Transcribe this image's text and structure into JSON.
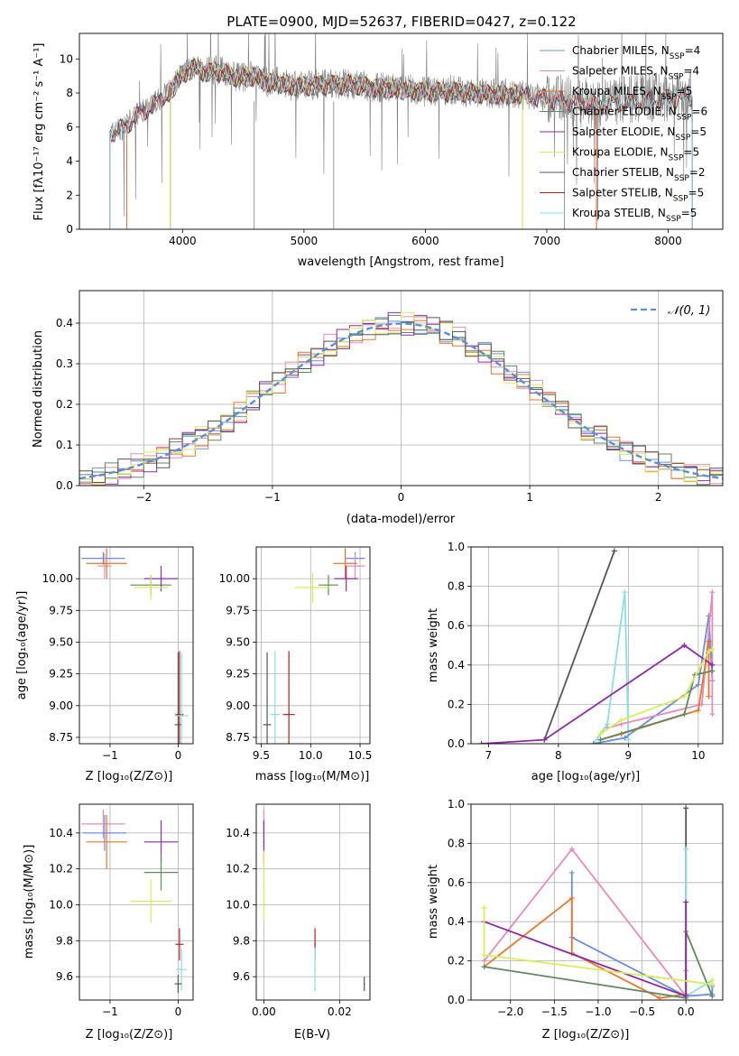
{
  "chart_data": [
    {
      "type": "line",
      "id": "spectrum",
      "title": "PLATE=0900, MJD=52637, FIBERID=0427, z=0.122",
      "xlabel": "wavelength [Angstrom, rest frame]",
      "ylabel": "Flux [fλ10⁻¹⁷ erg cm⁻² s⁻¹ A⁻¹]",
      "xlim": [
        3150,
        8450
      ],
      "ylim": [
        0,
        11.5
      ],
      "xticks": [
        4000,
        5000,
        6000,
        7000,
        8000
      ],
      "yticks": [
        0,
        2,
        4,
        6,
        8,
        10
      ],
      "grid": false,
      "legend_placement": "top-right",
      "data_series": {
        "name": "",
        "color": "#808080",
        "x": [
          3400,
          3500,
          3600,
          3700,
          3800,
          3900,
          4000,
          4100,
          4200,
          4300,
          4400,
          4500,
          4600,
          4700,
          4800,
          4900,
          5000,
          5200,
          5400,
          5600,
          5800,
          6000,
          6200,
          6400,
          6600,
          6800,
          7000,
          7200,
          7400,
          7600,
          7800,
          8000,
          8200
        ],
        "y": [
          5.6,
          5.9,
          6.6,
          7.1,
          7.6,
          8.2,
          9.2,
          9.6,
          9.3,
          9.4,
          9.1,
          8.9,
          9.1,
          8.6,
          8.7,
          8.4,
          8.4,
          8.6,
          8.5,
          8.3,
          8.3,
          8.1,
          8.2,
          8.0,
          8.0,
          7.9,
          7.7,
          7.5,
          7.3,
          7.5,
          7.7,
          7.8,
          7.8
        ]
      },
      "model_x": [
        3400,
        3500,
        3600,
        3700,
        3800,
        3900,
        4000,
        4100,
        4200,
        4300,
        4400,
        4500,
        4600,
        4700,
        4800,
        4900,
        5000,
        5200,
        5400,
        5600,
        5800,
        6000,
        6200,
        6400,
        6600,
        6800,
        7000,
        7200,
        7400,
        7600,
        7800,
        8000,
        8200
      ],
      "model_y": [
        5.7,
        5.9,
        6.5,
        7.0,
        7.5,
        8.1,
        9.1,
        9.5,
        9.2,
        9.3,
        9.0,
        8.9,
        9.0,
        8.6,
        8.6,
        8.4,
        8.4,
        8.5,
        8.5,
        8.3,
        8.2,
        8.1,
        8.1,
        8.0,
        7.9,
        7.9,
        7.7,
        7.5,
        7.3,
        7.4,
        7.6,
        7.7,
        7.8
      ],
      "series": [
        {
          "name": "Chabrier MILES",
          "nssp": "4",
          "color": "#6a8fd8",
          "x_range": [
            3540,
            7410
          ]
        },
        {
          "name": "Salpeter MILES",
          "nssp": "4",
          "color": "#e58cb8",
          "x_range": [
            3540,
            7410
          ]
        },
        {
          "name": "Kroupa MILES",
          "nssp": "5",
          "color": "#e8762c",
          "x_range": [
            3540,
            7410
          ]
        },
        {
          "name": "Chabrier ELODIE",
          "nssp": "6",
          "color": "#5e8a5e",
          "x_range": [
            3900,
            6800
          ]
        },
        {
          "name": "Salpeter ELODIE",
          "nssp": "5",
          "color": "#8e2aa2",
          "x_range": [
            3900,
            6800
          ]
        },
        {
          "name": "Kroupa ELODIE",
          "nssp": "5",
          "color": "#d8ec5a",
          "x_range": [
            3900,
            6800
          ]
        },
        {
          "name": "Chabrier STELIB",
          "nssp": "2",
          "color": "#555555",
          "x_range": [
            3400,
            8200
          ]
        },
        {
          "name": "Salpeter STELIB",
          "nssp": "5",
          "color": "#b22222",
          "x_range": [
            3400,
            8200
          ]
        },
        {
          "name": "Kroupa STELIB",
          "nssp": "5",
          "color": "#8adfe0",
          "x_range": [
            3400,
            8200
          ]
        }
      ],
      "legend_label_unit": "N",
      "legend_label_sub": "SSP"
    },
    {
      "type": "bar",
      "id": "residuals",
      "xlabel": "(data-model)/error",
      "ylabel": "Normed distribution",
      "xlim": [
        -2.5,
        2.5
      ],
      "ylim": [
        0,
        0.48
      ],
      "xticks": [
        -2,
        -1,
        0,
        1,
        2
      ],
      "yticks": [
        0.0,
        0.1,
        0.2,
        0.3,
        0.4
      ],
      "grid": true,
      "legend_placement": "top-right",
      "reference_curve": {
        "name": "𝒩(0, 1)",
        "color": "#5a8fd6",
        "style": "dashed"
      },
      "bin_width": 0.1,
      "bin_start": -2.5,
      "base_density": "normal(0,1)",
      "histogram_series": [
        {
          "color": "#6a8fd8"
        },
        {
          "color": "#e58cb8"
        },
        {
          "color": "#e8762c"
        },
        {
          "color": "#5e8a5e"
        },
        {
          "color": "#8e2aa2"
        },
        {
          "color": "#d8ec5a"
        },
        {
          "color": "#555555"
        }
      ]
    },
    {
      "type": "scatter",
      "id": "age_vs_Z",
      "xlabel": "Z [log₁₀(Z/Z⊙)]",
      "ylabel": "age  [log₁₀(age/yr)]",
      "xlim": [
        -1.45,
        0.22
      ],
      "ylim": [
        8.7,
        10.25
      ],
      "xticks": [
        -1,
        0
      ],
      "yticks": [
        8.75,
        9.0,
        9.25,
        9.5,
        9.75,
        10.0
      ],
      "grid": true,
      "points": [
        {
          "x": -1.1,
          "y": 10.16,
          "xerr": 0.32,
          "yerr": 0.05,
          "color": "#6a8fd8"
        },
        {
          "x": -1.08,
          "y": 10.1,
          "xerr": 0.1,
          "yerr": 0.1,
          "color": "#e58cb8"
        },
        {
          "x": -1.05,
          "y": 10.12,
          "xerr": 0.3,
          "yerr": 0.12,
          "color": "#e8762c"
        },
        {
          "x": -0.4,
          "y": 9.95,
          "xerr": 0.3,
          "yerr": 0.08,
          "color": "#5e8a5e"
        },
        {
          "x": -0.25,
          "y": 10.0,
          "xerr": 0.25,
          "yerr": 0.1,
          "color": "#8e2aa2"
        },
        {
          "x": -0.4,
          "y": 9.93,
          "xerr": 0.25,
          "yerr": 0.1,
          "color": "#d8ec5a"
        },
        {
          "x": 0.0,
          "y": 8.85,
          "xerr": 0.05,
          "yerr": 0.57,
          "color": "#555555"
        },
        {
          "x": 0.02,
          "y": 8.93,
          "xerr": 0.06,
          "yerr": 0.5,
          "color": "#b22222"
        },
        {
          "x": 0.05,
          "y": 8.92,
          "xerr": 0.1,
          "yerr": 0.5,
          "color": "#8adfe0"
        }
      ]
    },
    {
      "type": "scatter",
      "id": "age_vs_mass",
      "xlabel": "mass [log₁₀(M/M⊙)]",
      "ylabel": "",
      "xlim": [
        9.45,
        10.6
      ],
      "ylim": [
        8.7,
        10.25
      ],
      "xticks": [
        9.5,
        10.0,
        10.5
      ],
      "yticks": [
        8.75,
        9.0,
        9.25,
        9.5,
        9.75,
        10.0
      ],
      "grid": true,
      "points": [
        {
          "x": 10.45,
          "y": 10.16,
          "xerr": 0.1,
          "yerr": 0.05,
          "color": "#6a8fd8"
        },
        {
          "x": 10.45,
          "y": 10.1,
          "xerr": 0.1,
          "yerr": 0.1,
          "color": "#e58cb8"
        },
        {
          "x": 10.35,
          "y": 10.12,
          "xerr": 0.12,
          "yerr": 0.12,
          "color": "#e8762c"
        },
        {
          "x": 10.18,
          "y": 9.95,
          "xerr": 0.1,
          "yerr": 0.08,
          "color": "#5e8a5e"
        },
        {
          "x": 10.36,
          "y": 10.0,
          "xerr": 0.12,
          "yerr": 0.1,
          "color": "#8e2aa2"
        },
        {
          "x": 10.02,
          "y": 9.93,
          "xerr": 0.18,
          "yerr": 0.12,
          "color": "#d8ec5a"
        },
        {
          "x": 9.56,
          "y": 8.85,
          "xerr": 0.04,
          "yerr": 0.57,
          "color": "#555555"
        },
        {
          "x": 9.78,
          "y": 8.93,
          "xerr": 0.06,
          "yerr": 0.5,
          "color": "#b22222"
        },
        {
          "x": 9.64,
          "y": 8.93,
          "xerr": 0.05,
          "yerr": 0.5,
          "color": "#8adfe0"
        }
      ]
    },
    {
      "type": "line",
      "id": "weight_vs_age",
      "xlabel": "age  [log₁₀(age/yr)]",
      "ylabel": "mass weight",
      "xlim": [
        6.75,
        10.35
      ],
      "ylim": [
        0,
        1.0
      ],
      "xticks": [
        7,
        8,
        9,
        10
      ],
      "yticks": [
        0.0,
        0.2,
        0.4,
        0.6,
        0.8,
        1.0
      ],
      "grid": true,
      "series": [
        {
          "color": "#555555",
          "x": [
            7.8,
            8.8
          ],
          "y": [
            0.02,
            0.98
          ]
        },
        {
          "color": "#8adfe0",
          "x": [
            8.5,
            8.7,
            8.95,
            9.0
          ],
          "y": [
            0.0,
            0.1,
            0.77,
            0.02
          ]
        },
        {
          "color": "#6a8fd8",
          "x": [
            8.5,
            8.95,
            10.0,
            10.15,
            10.2
          ],
          "y": [
            0.0,
            0.03,
            0.3,
            0.65,
            0.32
          ]
        },
        {
          "color": "#e58cb8",
          "x": [
            8.7,
            8.9,
            10.05,
            10.2,
            10.2
          ],
          "y": [
            0.08,
            0.1,
            0.2,
            0.77,
            0.15
          ]
        },
        {
          "color": "#e8762c",
          "x": [
            8.6,
            8.9,
            10.0,
            10.15,
            10.15
          ],
          "y": [
            0.02,
            0.05,
            0.17,
            0.52,
            0.24
          ]
        },
        {
          "color": "#5e8a5e",
          "x": [
            8.6,
            9.8,
            9.95,
            10.2
          ],
          "y": [
            0.02,
            0.15,
            0.35,
            0.37
          ]
        },
        {
          "color": "#8e2aa2",
          "x": [
            6.9,
            7.8,
            9.8,
            10.2,
            10.2
          ],
          "y": [
            0.0,
            0.02,
            0.5,
            0.4,
            0.4
          ]
        },
        {
          "color": "#d8ec5a",
          "x": [
            8.6,
            8.9,
            9.8,
            10.15,
            10.2
          ],
          "y": [
            0.05,
            0.12,
            0.24,
            0.47,
            0.48
          ]
        }
      ]
    },
    {
      "type": "scatter",
      "id": "mass_vs_Z",
      "xlabel": "Z [log₁₀(Z/Z⊙)]",
      "ylabel": "mass [log₁₀(M/M⊙)]",
      "xlim": [
        -1.45,
        0.22
      ],
      "ylim": [
        9.47,
        10.56
      ],
      "xticks": [
        -1,
        0
      ],
      "yticks": [
        9.6,
        9.8,
        10.0,
        10.2,
        10.4
      ],
      "grid": true,
      "points": [
        {
          "x": -1.1,
          "y": 10.45,
          "xerr": 0.32,
          "yerr": 0.08,
          "color": "#e58cb8"
        },
        {
          "x": -1.08,
          "y": 10.4,
          "xerr": 0.32,
          "yerr": 0.1,
          "color": "#6a8fd8"
        },
        {
          "x": -1.05,
          "y": 10.35,
          "xerr": 0.3,
          "yerr": 0.15,
          "color": "#e8762c"
        },
        {
          "x": -0.25,
          "y": 10.35,
          "xerr": 0.25,
          "yerr": 0.12,
          "color": "#8e2aa2"
        },
        {
          "x": -0.25,
          "y": 10.18,
          "xerr": 0.25,
          "yerr": 0.1,
          "color": "#5e8a5e"
        },
        {
          "x": -0.4,
          "y": 10.02,
          "xerr": 0.3,
          "yerr": 0.12,
          "color": "#d8ec5a"
        },
        {
          "x": 0.02,
          "y": 9.78,
          "xerr": 0.06,
          "yerr": 0.09,
          "color": "#b22222"
        },
        {
          "x": 0.05,
          "y": 9.64,
          "xerr": 0.08,
          "yerr": 0.12,
          "color": "#8adfe0"
        },
        {
          "x": 0.0,
          "y": 9.56,
          "xerr": 0.05,
          "yerr": 0.05,
          "color": "#555555"
        }
      ]
    },
    {
      "type": "scatter",
      "id": "mass_vs_ebv",
      "xlabel": "E(B-V)",
      "ylabel": "",
      "xlim": [
        -0.002,
        0.028
      ],
      "ylim": [
        9.47,
        10.56
      ],
      "xticks": [
        0.0,
        0.02
      ],
      "yticks": [
        9.6,
        9.8,
        10.0,
        10.2,
        10.4
      ],
      "grid": true,
      "points": [
        {
          "x": 0.0,
          "y": 10.45,
          "xerr": 0.0002,
          "yerr": 0.08,
          "color": "#e58cb8"
        },
        {
          "x": 0.0,
          "y": 10.35,
          "xerr": 0.0002,
          "yerr": 0.12,
          "color": "#8e2aa2"
        },
        {
          "x": 0.0,
          "y": 10.1,
          "xerr": 0.0002,
          "yerr": 0.2,
          "color": "#d8ec5a"
        },
        {
          "x": 0.0135,
          "y": 9.78,
          "xerr": 0.0002,
          "yerr": 0.09,
          "color": "#b22222"
        },
        {
          "x": 0.0135,
          "y": 9.64,
          "xerr": 0.0002,
          "yerr": 0.12,
          "color": "#8adfe0"
        },
        {
          "x": 0.0265,
          "y": 9.56,
          "xerr": 0.0002,
          "yerr": 0.04,
          "color": "#555555"
        }
      ]
    },
    {
      "type": "line",
      "id": "weight_vs_Z",
      "xlabel": "Z [log₁₀(Z/Z⊙)]",
      "ylabel": "mass weight",
      "xlim": [
        -2.45,
        0.42
      ],
      "ylim": [
        0,
        1.0
      ],
      "xticks": [
        -2.0,
        -1.5,
        -1.0,
        -0.5,
        0.0
      ],
      "yticks": [
        0.0,
        0.2,
        0.4,
        0.6,
        0.8,
        1.0
      ],
      "grid": true,
      "series": [
        {
          "color": "#555555",
          "x": [
            0.0,
            0.0
          ],
          "y": [
            0.98,
            0.02
          ]
        },
        {
          "color": "#8adfe0",
          "x": [
            0.0,
            0.0,
            0.3,
            0.3
          ],
          "y": [
            0.77,
            0.02,
            0.1,
            0.02
          ]
        },
        {
          "color": "#6a8fd8",
          "x": [
            -1.3,
            -1.3,
            0.0,
            0.3,
            0.3
          ],
          "y": [
            0.65,
            0.32,
            0.02,
            0.03,
            0.07
          ]
        },
        {
          "color": "#e58cb8",
          "x": [
            -2.3,
            -1.3,
            0.0,
            0.0
          ],
          "y": [
            0.2,
            0.77,
            0.02,
            0.15
          ]
        },
        {
          "color": "#e8762c",
          "x": [
            -2.3,
            -1.3,
            -1.3,
            -0.3,
            0.0
          ],
          "y": [
            0.17,
            0.52,
            0.24,
            0.01,
            0.03
          ]
        },
        {
          "color": "#5e8a5e",
          "x": [
            -2.3,
            0.0,
            0.0,
            0.3
          ],
          "y": [
            0.17,
            0.01,
            0.35,
            0.02
          ]
        },
        {
          "color": "#8e2aa2",
          "x": [
            -2.3,
            0.0,
            0.0
          ],
          "y": [
            0.4,
            0.02,
            0.5
          ]
        },
        {
          "color": "#d8ec5a",
          "x": [
            -2.3,
            -2.3,
            0.3,
            0.3
          ],
          "y": [
            0.47,
            0.23,
            0.08,
            0.1
          ]
        }
      ]
    }
  ]
}
